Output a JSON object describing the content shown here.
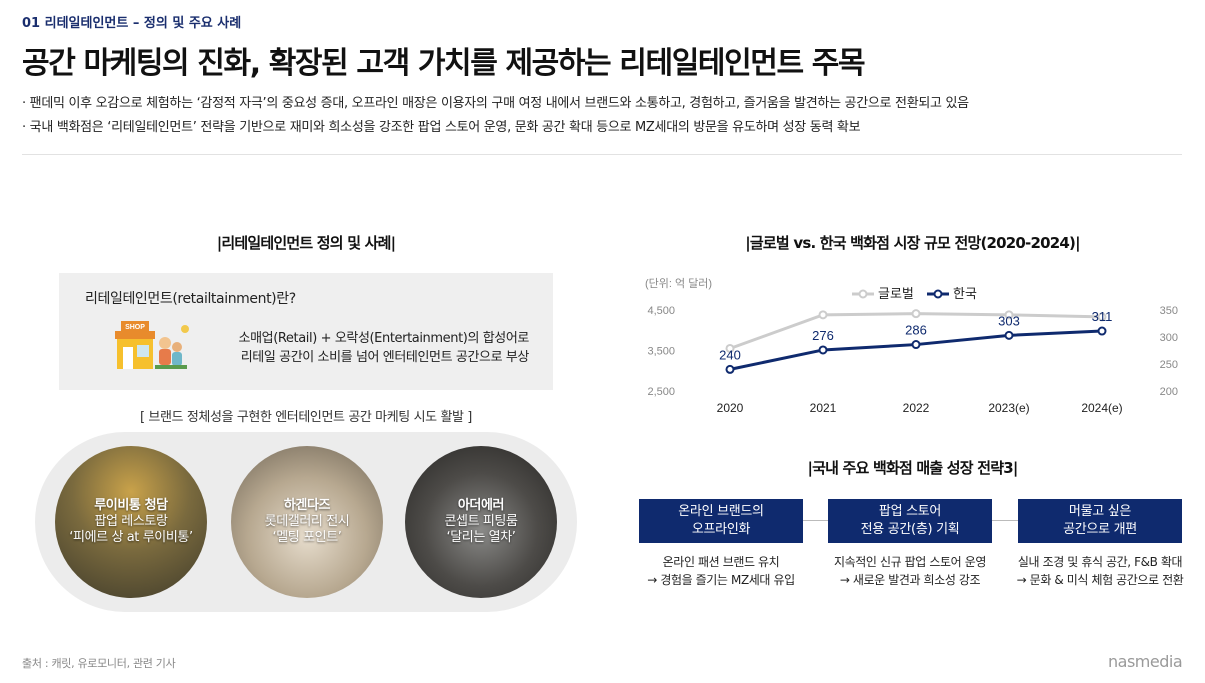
{
  "header": {
    "section_tag": "01 리테일테인먼트 – 정의 및 주요 사례",
    "title": "공간 마케팅의 진화, 확장된 고객 가치를 제공하는 리테일테인먼트 주목",
    "bullets": [
      "· 팬데믹 이후 오감으로 체험하는 ‘감정적 자극’의 중요성 증대, 오프라인 매장은 이용자의 구매 여정 내에서 브랜드와 소통하고, 경험하고, 즐거움을 발견하는 공간으로 전환되고 있음",
      "· 국내 백화점은 ‘리테일테인먼트’ 전략을 기반으로 재미와 희소성을 강조한 팝업 스토어 운영, 문화 공간 확대 등으로 MZ세대의 방문을 유도하며 성장 동력 확보"
    ]
  },
  "definition": {
    "panel_title": "|리테일테인먼트 정의 및 사례|",
    "question": "리테일테인먼트(retailtainment)란?",
    "shop_sign": "SHOP",
    "description": [
      "소매업(Retail) + 오락성(Entertainment)의 합성어로",
      "리테일 공간이 소비를 넘어 엔터테인먼트 공간으로 부상"
    ],
    "cases_subtitle": "[ 브랜드 정체성을 구현한 엔터테인먼트 공간 마케팅 시도 활발 ]",
    "cases": [
      {
        "brand": "루이비통 청담",
        "line2": "팝업 레스토랑",
        "line3": "‘피에르 상 at 루이비통’"
      },
      {
        "brand": "하겐다즈",
        "line2": "롯데갤러리 전시",
        "line3": "‘멜팅 포인트’"
      },
      {
        "brand": "아더에러",
        "line2": "콘셉트 피팅룸",
        "line3": "‘달리는 열차’"
      }
    ]
  },
  "market": {
    "panel_title": "|글로벌 vs. 한국 백화점 시장 규모 전망(2020-2024)|"
  },
  "chart_data": {
    "type": "line",
    "unit_label": "(단위: 억 달러)",
    "categories": [
      "2020",
      "2021",
      "2022",
      "2023(e)",
      "2024(e)"
    ],
    "series": [
      {
        "name": "글로벌",
        "axis": "left",
        "color": "#cccccc",
        "values": [
          3550,
          4380,
          4410,
          4380,
          4330
        ]
      },
      {
        "name": "한국",
        "axis": "right",
        "color": "#0f2a6e",
        "values": [
          240,
          276,
          286,
          303,
          311
        ]
      }
    ],
    "left_axis": {
      "ticks": [
        "2,500",
        "3,500",
        "4,500"
      ],
      "ylim": [
        2500,
        4500
      ]
    },
    "right_axis": {
      "ticks": [
        "200",
        "250",
        "300",
        "350"
      ],
      "ylim": [
        200,
        350
      ]
    },
    "data_labels_series": "한국",
    "legend": "top-center"
  },
  "strategy": {
    "panel_title": "|국내 주요 백화점 매출 성장 전략3|",
    "items": [
      {
        "title": [
          "온라인 브랜드의",
          "오프라인화"
        ],
        "desc": [
          "온라인 패션 브랜드 유치",
          "→ 경험을 즐기는 MZ세대 유입"
        ]
      },
      {
        "title": [
          "팝업 스토어",
          "전용 공간(층) 기획"
        ],
        "desc": [
          "지속적인 신규 팝업 스토어 운영",
          "→ 새로운 발견과 희소성 강조"
        ]
      },
      {
        "title": [
          "머물고 싶은",
          "공간으로 개편"
        ],
        "desc": [
          "실내 조경 및 휴식 공간, F&B 확대",
          "→ 문화 & 미식 체험 공간으로 전환"
        ]
      }
    ]
  },
  "footer": {
    "source": "출처 : 캐릿, 유로모니터, 관련 기사",
    "logo": "nasmedia"
  },
  "colors": {
    "navy": "#0f2a6e",
    "global_line": "#cccccc",
    "panel_bg": "#efefef"
  }
}
